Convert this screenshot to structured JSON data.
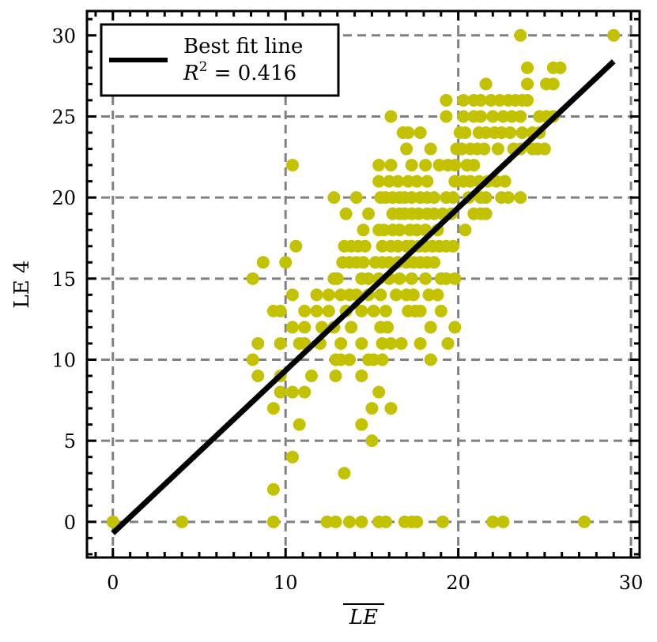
{
  "chart_data": {
    "type": "scatter",
    "xlabel": "LE",
    "xlabel_overline": true,
    "ylabel": "LE 4",
    "xlim": [
      -1.5,
      30.5
    ],
    "ylim": [
      -2.2,
      31.5
    ],
    "xticks": [
      "0",
      "10",
      "20",
      "30"
    ],
    "yticks": [
      "0",
      "5",
      "10",
      "15",
      "20",
      "25",
      "30"
    ],
    "xtick_values": [
      0,
      10,
      20,
      30
    ],
    "ytick_values": [
      0,
      5,
      10,
      15,
      20,
      25,
      30
    ],
    "grid": true,
    "grid_style": "dashed",
    "legend_position": "top-left",
    "colors": {
      "points": "#c2c200",
      "line": "#000000",
      "grid": "#808080"
    },
    "series": [
      {
        "type": "scatter",
        "points": [
          [
            0,
            0
          ],
          [
            4,
            0
          ],
          [
            9.3,
            0
          ],
          [
            12.4,
            0
          ],
          [
            12.9,
            0
          ],
          [
            13.7,
            0
          ],
          [
            14.4,
            0
          ],
          [
            15.4,
            0
          ],
          [
            15.8,
            0
          ],
          [
            16.9,
            0
          ],
          [
            17.3,
            0
          ],
          [
            17.6,
            0
          ],
          [
            19.1,
            0
          ],
          [
            22.0,
            0
          ],
          [
            22.6,
            0
          ],
          [
            27.3,
            0
          ],
          [
            9.3,
            2
          ],
          [
            13.4,
            3
          ],
          [
            10.4,
            4
          ],
          [
            15.0,
            5
          ],
          [
            10.8,
            6
          ],
          [
            14.4,
            6
          ],
          [
            9.3,
            7
          ],
          [
            15.0,
            7
          ],
          [
            16.1,
            7
          ],
          [
            15.4,
            8
          ],
          [
            9.7,
            8
          ],
          [
            10.4,
            8
          ],
          [
            11.1,
            8
          ],
          [
            8.4,
            9
          ],
          [
            9.7,
            9
          ],
          [
            11.5,
            9
          ],
          [
            12.9,
            9
          ],
          [
            14.4,
            9
          ],
          [
            8.1,
            10
          ],
          [
            12.9,
            10
          ],
          [
            13.2,
            10
          ],
          [
            13.7,
            10
          ],
          [
            14.8,
            10
          ],
          [
            15.1,
            10
          ],
          [
            15.6,
            10
          ],
          [
            18.4,
            10
          ],
          [
            8.4,
            11
          ],
          [
            9.7,
            11
          ],
          [
            10.8,
            11
          ],
          [
            11.1,
            11
          ],
          [
            12.0,
            11
          ],
          [
            13.2,
            11
          ],
          [
            14.4,
            11
          ],
          [
            15.6,
            11
          ],
          [
            16.1,
            11
          ],
          [
            16.7,
            11
          ],
          [
            17.8,
            11
          ],
          [
            19.4,
            11
          ],
          [
            10.4,
            12
          ],
          [
            11.1,
            12
          ],
          [
            12.1,
            12
          ],
          [
            12.8,
            12
          ],
          [
            13.8,
            12
          ],
          [
            15.5,
            12
          ],
          [
            15.9,
            12
          ],
          [
            18.4,
            12
          ],
          [
            19.8,
            12
          ],
          [
            9.3,
            13
          ],
          [
            9.7,
            13
          ],
          [
            11.1,
            13
          ],
          [
            11.8,
            13
          ],
          [
            12.5,
            13
          ],
          [
            13.5,
            13
          ],
          [
            14.4,
            13
          ],
          [
            15.1,
            13
          ],
          [
            15.8,
            13
          ],
          [
            17.1,
            13
          ],
          [
            17.5,
            13
          ],
          [
            17.8,
            13
          ],
          [
            19.0,
            13
          ],
          [
            10.4,
            14
          ],
          [
            11.8,
            14
          ],
          [
            12.5,
            14
          ],
          [
            13.2,
            14
          ],
          [
            13.7,
            14
          ],
          [
            14.1,
            14
          ],
          [
            14.8,
            14
          ],
          [
            15.5,
            14
          ],
          [
            16.4,
            14
          ],
          [
            17.0,
            14
          ],
          [
            17.4,
            14
          ],
          [
            18.3,
            14
          ],
          [
            18.8,
            14
          ],
          [
            8.1,
            15
          ],
          [
            12.8,
            15
          ],
          [
            13.0,
            15
          ],
          [
            14.4,
            15
          ],
          [
            14.8,
            15
          ],
          [
            15.4,
            15
          ],
          [
            16.0,
            15
          ],
          [
            16.6,
            15
          ],
          [
            17.3,
            15
          ],
          [
            18.1,
            15
          ],
          [
            19.0,
            15
          ],
          [
            19.3,
            15
          ],
          [
            19.8,
            15
          ],
          [
            8.7,
            16
          ],
          [
            10.0,
            16
          ],
          [
            13.3,
            16
          ],
          [
            13.7,
            16
          ],
          [
            14.1,
            16
          ],
          [
            14.5,
            16
          ],
          [
            15.2,
            16
          ],
          [
            15.6,
            16
          ],
          [
            16.0,
            16
          ],
          [
            16.5,
            16
          ],
          [
            17.0,
            16
          ],
          [
            17.4,
            16
          ],
          [
            17.8,
            16
          ],
          [
            18.2,
            16
          ],
          [
            18.6,
            16
          ],
          [
            10.6,
            17
          ],
          [
            13.4,
            17
          ],
          [
            13.8,
            17
          ],
          [
            14.2,
            17
          ],
          [
            14.6,
            17
          ],
          [
            15.6,
            17
          ],
          [
            16.1,
            17
          ],
          [
            16.5,
            17
          ],
          [
            17.0,
            17
          ],
          [
            17.3,
            17
          ],
          [
            17.7,
            17
          ],
          [
            18.1,
            17
          ],
          [
            18.5,
            17
          ],
          [
            18.9,
            17
          ],
          [
            19.3,
            17
          ],
          [
            19.7,
            17
          ],
          [
            14.5,
            18
          ],
          [
            15.4,
            18
          ],
          [
            15.7,
            18
          ],
          [
            16.2,
            18
          ],
          [
            16.6,
            18
          ],
          [
            17.2,
            18
          ],
          [
            17.6,
            18
          ],
          [
            18.1,
            18
          ],
          [
            18.8,
            18
          ],
          [
            20.4,
            18
          ],
          [
            13.5,
            19
          ],
          [
            14.8,
            19
          ],
          [
            16.2,
            19
          ],
          [
            16.6,
            19
          ],
          [
            16.9,
            19
          ],
          [
            17.3,
            19
          ],
          [
            17.7,
            19
          ],
          [
            18.2,
            19
          ],
          [
            18.6,
            19
          ],
          [
            19.1,
            19
          ],
          [
            19.6,
            19
          ],
          [
            20.9,
            19
          ],
          [
            21.3,
            19
          ],
          [
            21.6,
            19
          ],
          [
            12.8,
            20
          ],
          [
            14.1,
            20
          ],
          [
            15.5,
            20
          ],
          [
            15.8,
            20
          ],
          [
            16.2,
            20
          ],
          [
            16.6,
            20
          ],
          [
            16.9,
            20
          ],
          [
            17.3,
            20
          ],
          [
            17.8,
            20
          ],
          [
            18.2,
            20
          ],
          [
            18.6,
            20
          ],
          [
            19.3,
            20
          ],
          [
            19.7,
            20
          ],
          [
            20.6,
            20
          ],
          [
            21.3,
            20
          ],
          [
            21.6,
            20
          ],
          [
            22.5,
            20
          ],
          [
            22.9,
            20
          ],
          [
            23.6,
            20
          ],
          [
            15.4,
            21
          ],
          [
            16.0,
            21
          ],
          [
            16.5,
            21
          ],
          [
            17.1,
            21
          ],
          [
            17.6,
            21
          ],
          [
            18.2,
            21
          ],
          [
            19.8,
            21
          ],
          [
            20.3,
            21
          ],
          [
            20.7,
            21
          ],
          [
            21.2,
            21
          ],
          [
            21.7,
            21
          ],
          [
            22.2,
            21
          ],
          [
            22.7,
            21
          ],
          [
            10.4,
            22
          ],
          [
            15.4,
            22
          ],
          [
            16.1,
            22
          ],
          [
            17.3,
            22
          ],
          [
            18.1,
            22
          ],
          [
            18.9,
            22
          ],
          [
            19.4,
            22
          ],
          [
            19.8,
            22
          ],
          [
            20.5,
            22
          ],
          [
            20.9,
            22
          ],
          [
            19.9,
            23
          ],
          [
            20.2,
            23
          ],
          [
            20.7,
            23
          ],
          [
            21.1,
            23
          ],
          [
            21.5,
            23
          ],
          [
            22.3,
            23
          ],
          [
            23.2,
            23
          ],
          [
            23.6,
            23
          ],
          [
            24.3,
            23
          ],
          [
            24.6,
            23
          ],
          [
            25.0,
            23
          ],
          [
            18.4,
            23
          ],
          [
            17.0,
            23
          ],
          [
            16.8,
            24
          ],
          [
            17.1,
            24
          ],
          [
            17.8,
            24
          ],
          [
            20.1,
            24
          ],
          [
            20.4,
            24
          ],
          [
            21.2,
            24
          ],
          [
            21.6,
            24
          ],
          [
            22.1,
            24
          ],
          [
            22.5,
            24
          ],
          [
            23.0,
            24
          ],
          [
            23.7,
            24
          ],
          [
            24.3,
            24
          ],
          [
            24.7,
            24
          ],
          [
            16.1,
            25
          ],
          [
            19.3,
            25
          ],
          [
            20.3,
            25
          ],
          [
            20.9,
            25
          ],
          [
            21.3,
            25
          ],
          [
            22.0,
            25
          ],
          [
            22.6,
            25
          ],
          [
            23.1,
            25
          ],
          [
            23.6,
            25
          ],
          [
            24.7,
            25
          ],
          [
            25.1,
            25
          ],
          [
            25.5,
            25
          ],
          [
            19.3,
            26
          ],
          [
            20.3,
            26
          ],
          [
            20.9,
            26
          ],
          [
            21.3,
            26
          ],
          [
            21.9,
            26
          ],
          [
            22.4,
            26
          ],
          [
            22.9,
            26
          ],
          [
            23.3,
            26
          ],
          [
            23.7,
            26
          ],
          [
            24.0,
            26
          ],
          [
            21.6,
            27
          ],
          [
            24.0,
            27
          ],
          [
            25.1,
            27
          ],
          [
            25.5,
            27
          ],
          [
            24.0,
            28
          ],
          [
            25.5,
            28
          ],
          [
            25.9,
            28
          ],
          [
            23.6,
            30
          ],
          [
            29.0,
            30
          ]
        ]
      },
      {
        "type": "line",
        "name": "Best fit line",
        "x": [
          0,
          29.0
        ],
        "y": [
          -0.7,
          28.4
        ]
      }
    ],
    "legend": [
      {
        "label_line1": "Best fit line",
        "label_line2_lhs": "R",
        "label_line2_sup": "2",
        "label_line2_rhs": " = 0.416"
      }
    ]
  }
}
